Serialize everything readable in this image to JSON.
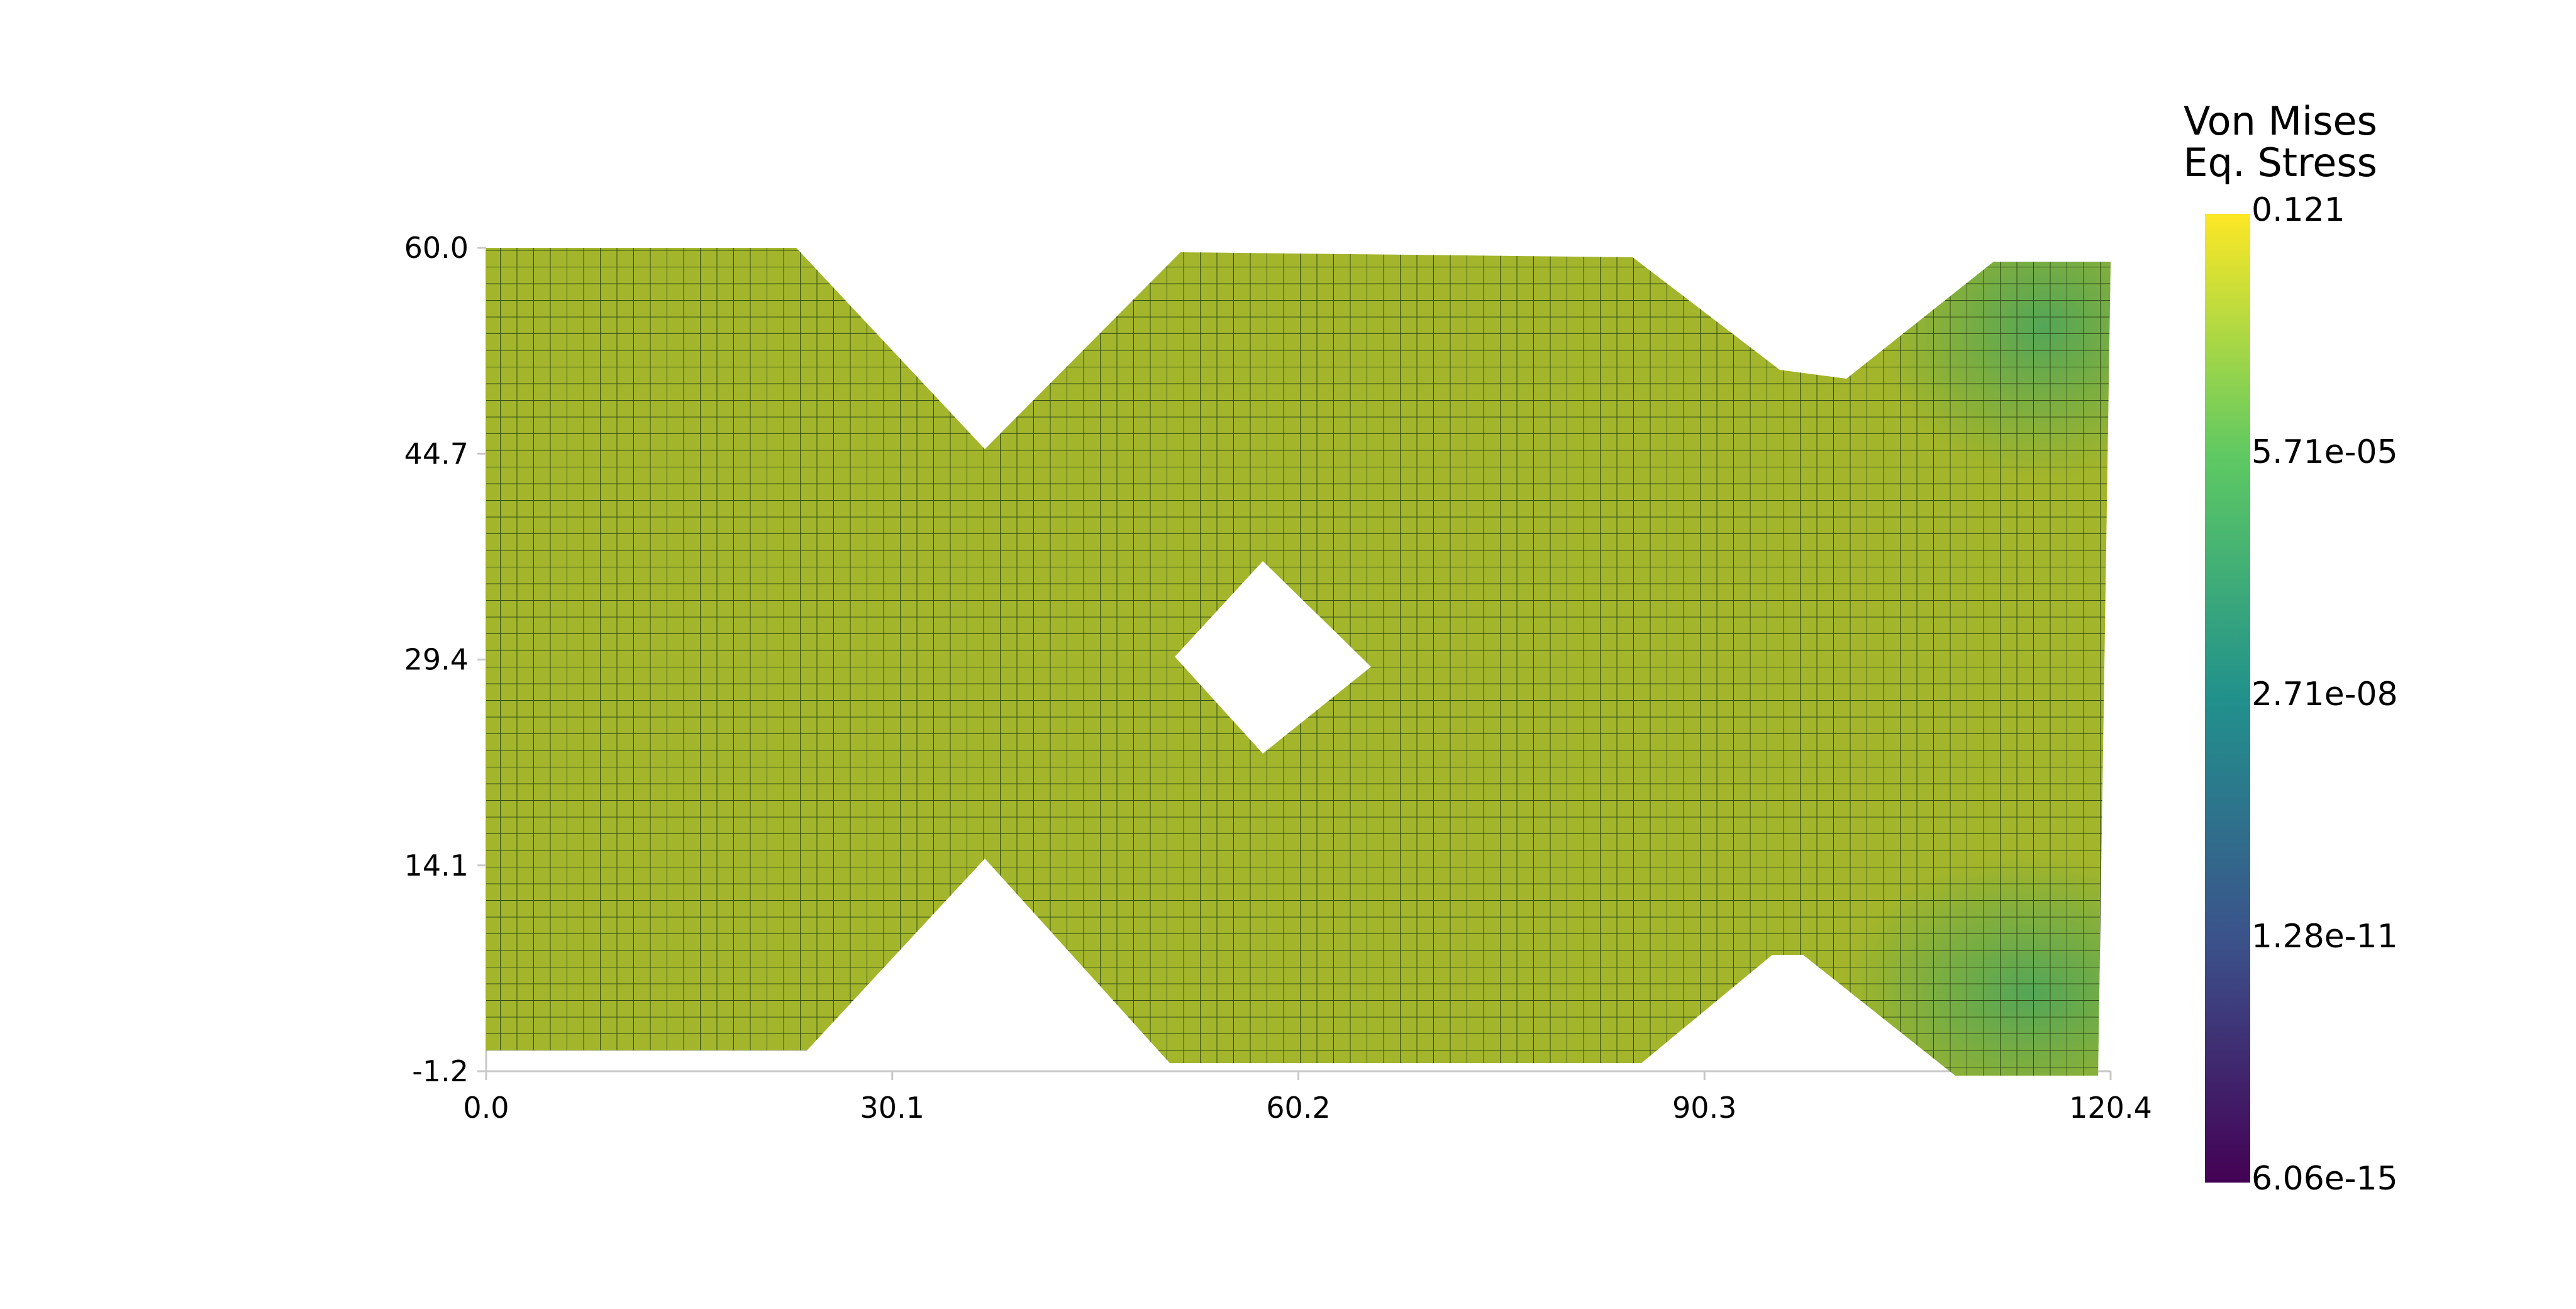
{
  "chart_data": {
    "type": "heatmap",
    "title": "",
    "xlabel": "",
    "ylabel": "",
    "x_ticks": [
      "0.0",
      "30.1",
      "60.2",
      "90.3",
      "120.4"
    ],
    "y_ticks": [
      "60.0",
      "44.7",
      "29.4",
      "14.1",
      "-1.2"
    ],
    "xlim": [
      0.0,
      120.4
    ],
    "ylim": [
      -1.2,
      60.0
    ],
    "grid": false,
    "legend": "right",
    "colorbar": {
      "title_line1": "Von Mises",
      "title_line2": "Eq. Stress",
      "labels": [
        "0.121",
        "5.71e-05",
        "2.71e-08",
        "1.28e-11",
        "6.06e-15"
      ],
      "scale": "log",
      "colormap": "viridis",
      "stops": [
        "#fde725",
        "#5ec962",
        "#21918c",
        "#3b528b",
        "#440154"
      ]
    },
    "field": {
      "dominant_color": "#a3b52a",
      "low_region_color": "#4fa55a",
      "mesh_color": "#2f4a18"
    }
  }
}
